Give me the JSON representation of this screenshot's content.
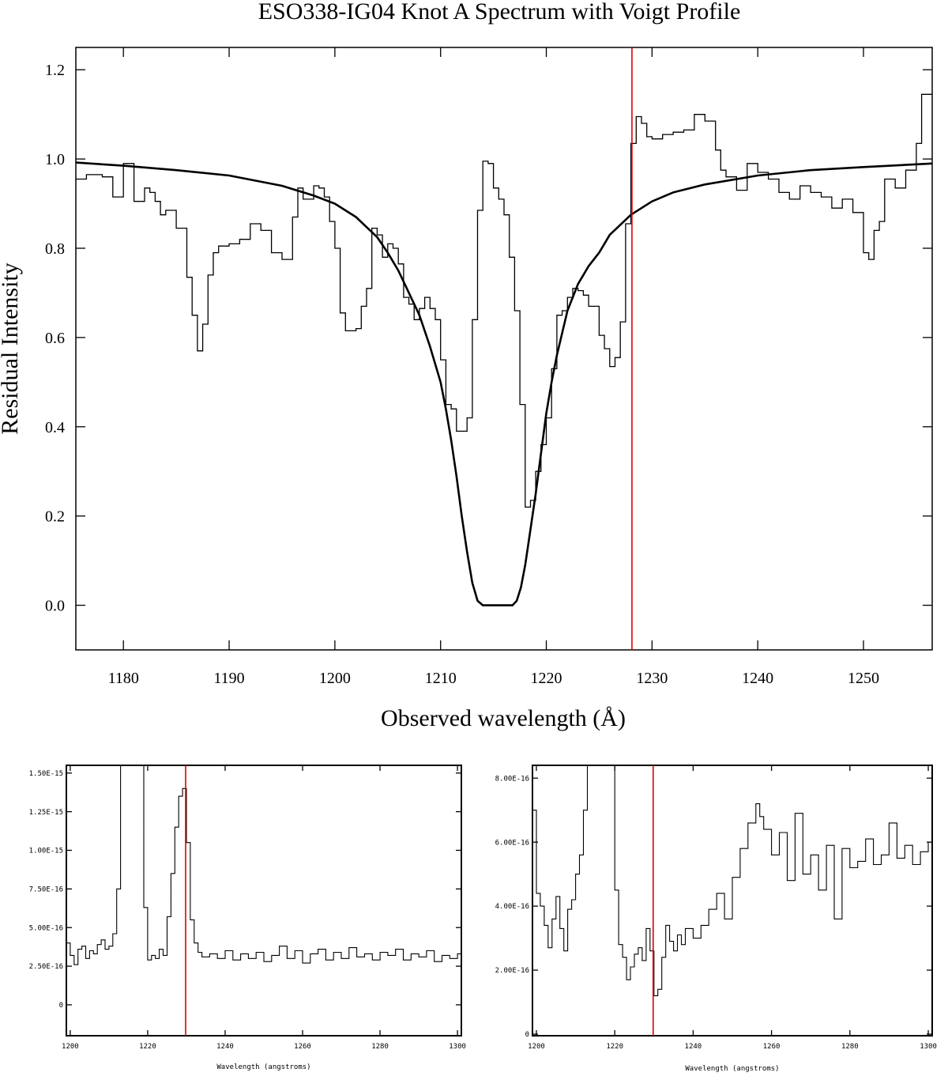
{
  "chart_data": [
    {
      "type": "line",
      "title": "ESO338-IG04 Knot A Spectrum with Voigt Profile",
      "xlabel": "Observed wavelength (Å)",
      "ylabel": "Residual Intensity",
      "xlim": [
        1175.5,
        1256.5
      ],
      "ylim": [
        -0.1,
        1.25
      ],
      "x_ticks": [
        1180,
        1190,
        1200,
        1210,
        1220,
        1230,
        1240,
        1250
      ],
      "x_tick_labels": [
        "1180",
        "1190",
        "1200",
        "1210",
        "1220",
        "1230",
        "1240",
        "1250"
      ],
      "y_ticks": [
        0.0,
        0.2,
        0.4,
        0.6,
        0.8,
        1.0,
        1.2
      ],
      "y_tick_labels": [
        "0.0",
        "0.2",
        "0.4",
        "0.6",
        "0.8",
        "1.0",
        "1.2"
      ],
      "grid": false,
      "colors": {
        "data": "#000000",
        "model": "#000000",
        "marker": "#e00000"
      },
      "vline_x": 1228.1,
      "series": [
        {
          "style": "step",
          "x": [
            1175.5,
            1176.5,
            1178.0,
            1179.0,
            1180.0,
            1181.0,
            1182.0,
            1182.5,
            1183.0,
            1183.5,
            1184.0,
            1185.0,
            1186.0,
            1186.5,
            1187.0,
            1187.5,
            1188.0,
            1188.5,
            1189.0,
            1189.5,
            1190.0,
            1191.0,
            1192.0,
            1193.0,
            1194.0,
            1195.0,
            1196.0,
            1196.5,
            1197.0,
            1198.0,
            1198.5,
            1199.0,
            1199.5,
            1200.0,
            1200.5,
            1201.0,
            1202.0,
            1202.5,
            1203.0,
            1203.5,
            1204.0,
            1204.5,
            1205.0,
            1205.5,
            1206.0,
            1206.5,
            1207.0,
            1207.5,
            1208.0,
            1208.5,
            1209.0,
            1209.5,
            1210.0,
            1210.5,
            1211.0,
            1211.5,
            1212.0,
            1212.5,
            1213.0,
            1213.5,
            1214.0,
            1214.5,
            1215.0,
            1215.5,
            1216.0,
            1216.5,
            1217.0,
            1217.5,
            1218.0,
            1218.5,
            1219.0,
            1219.5,
            1220.0,
            1220.5,
            1221.0,
            1221.5,
            1222.0,
            1222.5,
            1223.0,
            1223.5,
            1224.0,
            1225.0,
            1225.5,
            1226.0,
            1226.5,
            1227.0,
            1227.5,
            1228.0,
            1228.5,
            1229.0,
            1229.5,
            1230.0,
            1231.0,
            1232.0,
            1233.0,
            1234.0,
            1235.0,
            1236.0,
            1236.5,
            1237.0,
            1238.0,
            1239.0,
            1240.0,
            1241.0,
            1242.0,
            1243.0,
            1244.0,
            1245.0,
            1246.0,
            1247.0,
            1248.0,
            1249.0,
            1250.0,
            1250.5,
            1251.0,
            1251.5,
            1252.0,
            1253.0,
            1254.0,
            1255.0,
            1255.5
          ],
          "y": [
            0.955,
            0.965,
            0.96,
            0.915,
            0.99,
            0.905,
            0.935,
            0.925,
            0.905,
            0.875,
            0.885,
            0.845,
            0.735,
            0.65,
            0.57,
            0.63,
            0.74,
            0.79,
            0.805,
            0.805,
            0.81,
            0.82,
            0.855,
            0.84,
            0.79,
            0.775,
            0.87,
            0.935,
            0.91,
            0.94,
            0.935,
            0.915,
            0.86,
            0.8,
            0.655,
            0.615,
            0.62,
            0.67,
            0.71,
            0.845,
            0.83,
            0.78,
            0.81,
            0.8,
            0.765,
            0.69,
            0.675,
            0.64,
            0.665,
            0.69,
            0.665,
            0.64,
            0.55,
            0.45,
            0.44,
            0.39,
            0.39,
            0.42,
            0.64,
            0.885,
            0.995,
            0.99,
            0.935,
            0.91,
            0.875,
            0.78,
            0.66,
            0.45,
            0.22,
            0.235,
            0.3,
            0.36,
            0.42,
            0.53,
            0.65,
            0.66,
            0.69,
            0.71,
            0.705,
            0.695,
            0.67,
            0.605,
            0.575,
            0.535,
            0.555,
            0.635,
            0.855,
            1.035,
            1.095,
            1.08,
            1.05,
            1.045,
            1.055,
            1.06,
            1.065,
            1.1,
            1.085,
            1.02,
            0.975,
            0.96,
            0.93,
            0.99,
            0.97,
            0.955,
            0.925,
            0.91,
            0.94,
            0.925,
            0.915,
            0.89,
            0.91,
            0.88,
            0.79,
            0.775,
            0.84,
            0.86,
            0.955,
            0.935,
            0.975,
            1.035,
            1.145
          ]
        },
        {
          "style": "line",
          "x": [
            1175.5,
            1180,
            1185,
            1190,
            1195,
            1198,
            1200,
            1202,
            1204,
            1205,
            1206,
            1207,
            1208,
            1209,
            1210,
            1210.5,
            1211,
            1211.5,
            1212,
            1212.5,
            1213,
            1213.5,
            1214,
            1214.3,
            1214.6,
            1215,
            1216,
            1216.8,
            1217.2,
            1217.6,
            1218,
            1218.5,
            1219,
            1219.5,
            1220,
            1220.5,
            1221,
            1221.5,
            1222,
            1223,
            1224,
            1225,
            1226,
            1228,
            1230,
            1232,
            1235,
            1240,
            1245,
            1250,
            1256.5
          ],
          "y": [
            0.992,
            0.985,
            0.975,
            0.963,
            0.94,
            0.918,
            0.9,
            0.87,
            0.825,
            0.79,
            0.75,
            0.7,
            0.65,
            0.58,
            0.5,
            0.44,
            0.37,
            0.29,
            0.2,
            0.12,
            0.05,
            0.01,
            0.0,
            0.0,
            0.0,
            0.0,
            0.0,
            0.0,
            0.01,
            0.04,
            0.09,
            0.17,
            0.25,
            0.34,
            0.43,
            0.5,
            0.56,
            0.61,
            0.66,
            0.72,
            0.76,
            0.79,
            0.83,
            0.875,
            0.905,
            0.925,
            0.943,
            0.963,
            0.975,
            0.982,
            0.99
          ]
        }
      ]
    },
    {
      "type": "line",
      "title": "",
      "xlabel": "Wavelength (angstroms)",
      "ylabel": "",
      "xlim": [
        1199,
        1301
      ],
      "ylim": [
        -2e-16,
        1.55e-15
      ],
      "x_ticks": [
        1200,
        1220,
        1240,
        1260,
        1280,
        1300
      ],
      "x_tick_labels": [
        "1200",
        "1220",
        "1240",
        "1260",
        "1280",
        "1300"
      ],
      "y_ticks": [
        0,
        2.5e-16,
        5e-16,
        7.5e-16,
        1e-15,
        1.25e-15,
        1.5e-15
      ],
      "y_tick_labels": [
        "0",
        "2.50E-16",
        "5.00E-16",
        "7.50E-16",
        "1.00E-15",
        "1.25E-15",
        "1.50E-15"
      ],
      "grid": false,
      "colors": {
        "data": "#000000",
        "marker": "#e00000"
      },
      "vline_x": 1229.8,
      "series": [
        {
          "style": "step",
          "x": [
            1199,
            1200,
            1201,
            1202,
            1203,
            1204,
            1205,
            1206,
            1207,
            1208,
            1209,
            1210,
            1211,
            1212,
            1213,
            1214,
            1218,
            1219,
            1220,
            1221,
            1222,
            1223,
            1224,
            1225,
            1226,
            1227,
            1228,
            1229,
            1230,
            1231,
            1232,
            1233,
            1234,
            1236,
            1238,
            1240,
            1242,
            1244,
            1246,
            1248,
            1250,
            1252,
            1254,
            1256,
            1258,
            1260,
            1262,
            1264,
            1266,
            1268,
            1270,
            1272,
            1274,
            1276,
            1278,
            1280,
            1282,
            1284,
            1286,
            1288,
            1290,
            1292,
            1294,
            1296,
            1298,
            1300
          ],
          "y": [
            4e-16,
            3.2e-16,
            2.6e-16,
            3.6e-16,
            3.8e-16,
            3e-16,
            3.5e-16,
            3.3e-16,
            3.9e-16,
            4.2e-16,
            3.6e-16,
            3.8e-16,
            4.6e-16,
            7.5e-16,
            1.6e-15,
            1.6e-15,
            1.6e-15,
            6.3e-16,
            2.9e-16,
            3.2e-16,
            3e-16,
            3.6e-16,
            3.2e-16,
            5.7e-16,
            8.5e-16,
            1.15e-15,
            1.35e-15,
            1.4e-15,
            1.05e-15,
            5.5e-16,
            4e-16,
            3.4e-16,
            3.1e-16,
            3.3e-16,
            3e-16,
            3.5e-16,
            2.9e-16,
            3.3e-16,
            3e-16,
            3.4e-16,
            2.8e-16,
            3.2e-16,
            3.8e-16,
            3e-16,
            3.5e-16,
            2.7e-16,
            3.3e-16,
            3.6e-16,
            2.9e-16,
            3.4e-16,
            3e-16,
            3.7e-16,
            3.1e-16,
            3.3e-16,
            2.9e-16,
            3.4e-16,
            3.2e-16,
            3.6e-16,
            2.9e-16,
            3.3e-16,
            3.1e-16,
            3.5e-16,
            2.8e-16,
            3.2e-16,
            3e-16,
            3.3e-16
          ]
        }
      ]
    },
    {
      "type": "line",
      "title": "",
      "xlabel": "Wavelength (angstroms)",
      "ylabel": "",
      "xlim": [
        1199,
        1301
      ],
      "ylim": [
        -5e-18,
        8.4e-16
      ],
      "x_ticks": [
        1200,
        1220,
        1240,
        1260,
        1280,
        1300
      ],
      "x_tick_labels": [
        "1200",
        "1220",
        "1240",
        "1260",
        "1280",
        "1300"
      ],
      "y_ticks": [
        0,
        2e-16,
        4e-16,
        6e-16,
        8e-16
      ],
      "y_tick_labels": [
        "0",
        "2.00E-16",
        "4.00E-16",
        "6.00E-16",
        "8.00E-16"
      ],
      "grid": false,
      "colors": {
        "data": "#000000",
        "marker": "#e00000"
      },
      "vline_x": 1229.8,
      "series": [
        {
          "style": "step",
          "x": [
            1199,
            1200,
            1201,
            1202,
            1203,
            1204,
            1205,
            1206,
            1207,
            1208,
            1209,
            1210,
            1211,
            1212,
            1213,
            1214,
            1219,
            1220,
            1221,
            1222,
            1223,
            1224,
            1225,
            1226,
            1227,
            1228,
            1229,
            1230,
            1231,
            1232,
            1233,
            1234,
            1235,
            1236,
            1237,
            1238,
            1240,
            1242,
            1244,
            1246,
            1248,
            1250,
            1252,
            1254,
            1256,
            1257,
            1258,
            1260,
            1262,
            1264,
            1266,
            1268,
            1270,
            1272,
            1274,
            1276,
            1278,
            1280,
            1282,
            1284,
            1286,
            1288,
            1290,
            1292,
            1294,
            1296,
            1298,
            1300
          ],
          "y": [
            7e-16,
            4.4e-16,
            4e-16,
            3.4e-16,
            2.7e-16,
            3.6e-16,
            4.3e-16,
            3.3e-16,
            2.6e-16,
            3.9e-16,
            4.2e-16,
            5e-16,
            5.6e-16,
            7e-16,
            8.6e-16,
            8.6e-16,
            8.6e-16,
            4.5e-16,
            2.8e-16,
            2.4e-16,
            1.7e-16,
            2.1e-16,
            2.5e-16,
            2.7e-16,
            2.3e-16,
            3.3e-16,
            2.6e-16,
            1.2e-16,
            1.4e-16,
            2.4e-16,
            3.4e-16,
            2.9e-16,
            2.6e-16,
            3.1e-16,
            2.8e-16,
            3.3e-16,
            3e-16,
            3.4e-16,
            3.9e-16,
            4.4e-16,
            3.6e-16,
            4.9e-16,
            5.8e-16,
            6.6e-16,
            7.2e-16,
            6.8e-16,
            6.4e-16,
            5.6e-16,
            6.3e-16,
            4.8e-16,
            6.9e-16,
            5e-16,
            5.6e-16,
            4.5e-16,
            5.9e-16,
            3.6e-16,
            5.8e-16,
            5.2e-16,
            5.4e-16,
            6.1e-16,
            5.3e-16,
            5.6e-16,
            6.6e-16,
            5.5e-16,
            5.9e-16,
            5.3e-16,
            5.7e-16,
            6e-16
          ]
        }
      ]
    }
  ]
}
